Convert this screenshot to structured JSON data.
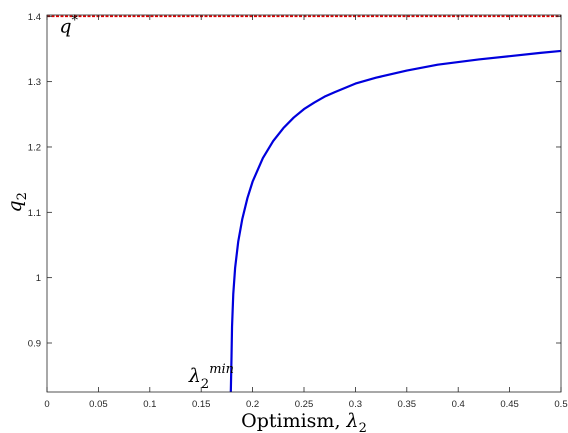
{
  "chart_data": {
    "type": "line",
    "xlabel": "Optimism, λ₂",
    "xlabel_text": "Optimism, ",
    "xlabel_symbol": "λ",
    "xlabel_subscript": "2",
    "ylabel_symbol": "q",
    "ylabel_subscript": "2",
    "xlim": [
      0,
      0.5
    ],
    "ylim": [
      0.825,
      1.402
    ],
    "xticks": [
      0,
      0.05,
      0.1,
      0.15,
      0.2,
      0.25,
      0.3,
      0.35,
      0.4,
      0.45,
      0.5
    ],
    "xtick_labels": [
      "0",
      "0.05",
      "0.1",
      "0.15",
      "0.2",
      "0.25",
      "0.3",
      "0.35",
      "0.4",
      "0.45",
      "0.5"
    ],
    "yticks": [
      0.9,
      1.0,
      1.1,
      1.2,
      1.3,
      1.4
    ],
    "ytick_labels": [
      "0.9",
      "1",
      "1.1",
      "1.2",
      "1.3",
      "1.4"
    ],
    "grid": false,
    "series": [
      {
        "color": "#0000dd",
        "style": "solid",
        "x": [
          0.1788,
          0.1795,
          0.18,
          0.1812,
          0.183,
          0.186,
          0.19,
          0.195,
          0.2,
          0.21,
          0.22,
          0.23,
          0.24,
          0.25,
          0.26,
          0.27,
          0.28,
          0.3,
          0.32,
          0.35,
          0.38,
          0.4,
          0.42,
          0.45,
          0.48,
          0.5
        ],
        "y": [
          0.825,
          0.88,
          0.925,
          0.975,
          1.015,
          1.055,
          1.09,
          1.122,
          1.147,
          1.183,
          1.209,
          1.229,
          1.245,
          1.258,
          1.268,
          1.277,
          1.284,
          1.297,
          1.306,
          1.317,
          1.326,
          1.33,
          1.334,
          1.339,
          1.344,
          1.347
        ]
      },
      {
        "color": "#dd0000",
        "style": "dashed",
        "x": [
          0,
          0.5
        ],
        "y": [
          1.4,
          1.4
        ]
      }
    ],
    "annotations": [
      {
        "symbol": "q",
        "superscript": "*",
        "x": 0.012,
        "y": 1.375
      },
      {
        "symbol": "λ",
        "subscript": "2",
        "superscript": "min",
        "x": 0.138,
        "y": 0.84
      }
    ]
  }
}
